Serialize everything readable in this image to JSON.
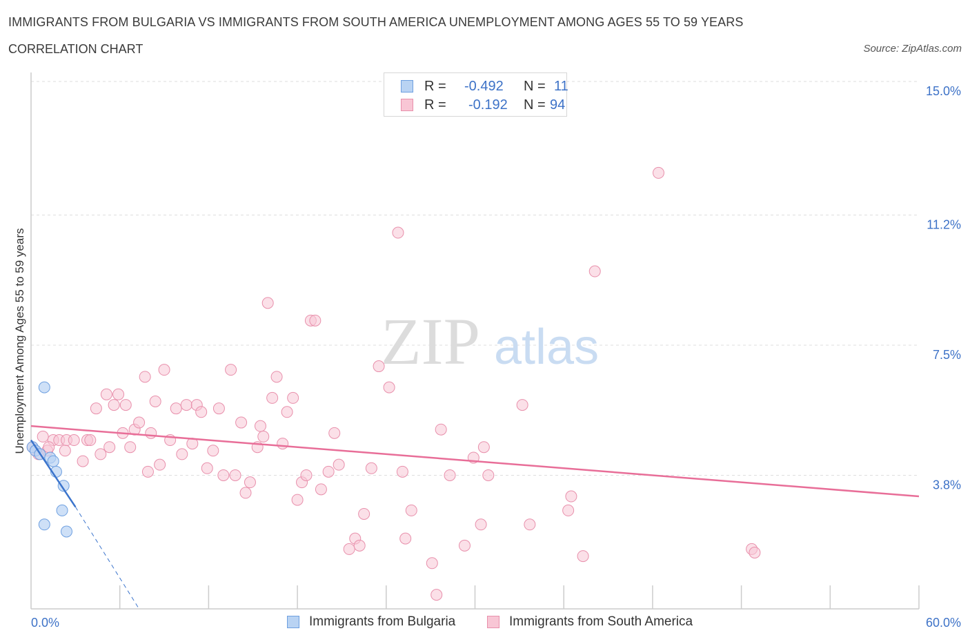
{
  "header": {
    "title": "IMMIGRANTS FROM BULGARIA VS IMMIGRANTS FROM SOUTH AMERICA UNEMPLOYMENT AMONG AGES 55 TO 59 YEARS",
    "subtitle": "CORRELATION CHART",
    "source": "Source: ZipAtlas.com"
  },
  "legend_top": {
    "rows": [
      {
        "r_label": "R =",
        "r_value": "-0.492",
        "n_label": "N =",
        "n_value": "11"
      },
      {
        "r_label": "R =",
        "r_value": "-0.192",
        "n_label": "N =",
        "n_value": "94"
      }
    ]
  },
  "watermark": {
    "part1": "ZIP",
    "part2": "atlas"
  },
  "colors": {
    "bulgaria_fill": "#b9d3f3",
    "bulgaria_stroke": "#6d9fe0",
    "bulgaria_line": "#3b74cc",
    "south_america_fill": "#f8c6d5",
    "south_america_stroke": "#e88fab",
    "south_america_line": "#e86e98",
    "grid": "#dddddd",
    "tick_text": "#3d72c7"
  },
  "chart_data": {
    "type": "scatter",
    "title": "IMMIGRANTS FROM BULGARIA VS IMMIGRANTS FROM SOUTH AMERICA UNEMPLOYMENT AMONG AGES 55 TO 59 YEARS",
    "xlabel": "",
    "ylabel": "Unemployment Among Ages 55 to 59 years",
    "xlim": [
      0,
      60
    ],
    "ylim": [
      0,
      15
    ],
    "x_tick_labels": [
      "0.0%",
      "60.0%"
    ],
    "y_ticks": [
      3.8,
      7.5,
      11.2,
      15.0
    ],
    "y_tick_labels": [
      "3.8%",
      "7.5%",
      "11.2%",
      "15.0%"
    ],
    "grid": true,
    "legend_position": "bottom-center",
    "series": [
      {
        "name": "Immigrants from Bulgaria",
        "R": -0.492,
        "N": 11,
        "points": [
          [
            0.1,
            4.6
          ],
          [
            0.3,
            4.5
          ],
          [
            0.6,
            4.4
          ],
          [
            0.9,
            6.3
          ],
          [
            1.3,
            4.3
          ],
          [
            1.5,
            4.2
          ],
          [
            1.7,
            3.9
          ],
          [
            2.2,
            3.5
          ],
          [
            2.1,
            2.8
          ],
          [
            0.9,
            2.4
          ],
          [
            2.4,
            2.2
          ]
        ],
        "trend": {
          "x1": 0.0,
          "y1": 4.8,
          "x2": 3.0,
          "y2": 2.9,
          "dashed_to": [
            7.3,
            0.0
          ]
        }
      },
      {
        "name": "Immigrants from South America",
        "R": -0.192,
        "N": 94,
        "points": [
          [
            0.1,
            4.6
          ],
          [
            0.5,
            4.4
          ],
          [
            1.1,
            4.5
          ],
          [
            1.5,
            4.8
          ],
          [
            1.9,
            4.8
          ],
          [
            2.3,
            4.5
          ],
          [
            2.4,
            4.8
          ],
          [
            2.9,
            4.8
          ],
          [
            3.5,
            4.2
          ],
          [
            3.8,
            4.8
          ],
          [
            4.0,
            4.8
          ],
          [
            4.4,
            5.7
          ],
          [
            4.7,
            4.4
          ],
          [
            5.1,
            6.1
          ],
          [
            5.3,
            4.6
          ],
          [
            5.6,
            5.8
          ],
          [
            5.9,
            6.1
          ],
          [
            6.2,
            5.0
          ],
          [
            6.4,
            5.8
          ],
          [
            6.7,
            4.6
          ],
          [
            7.0,
            5.1
          ],
          [
            7.3,
            5.3
          ],
          [
            7.7,
            6.6
          ],
          [
            7.9,
            3.9
          ],
          [
            8.1,
            5.0
          ],
          [
            8.4,
            5.9
          ],
          [
            8.7,
            4.1
          ],
          [
            9.0,
            6.8
          ],
          [
            9.4,
            4.8
          ],
          [
            9.8,
            5.7
          ],
          [
            10.2,
            4.4
          ],
          [
            10.5,
            5.8
          ],
          [
            10.9,
            4.7
          ],
          [
            11.2,
            5.8
          ],
          [
            11.5,
            5.6
          ],
          [
            11.9,
            4.0
          ],
          [
            12.3,
            4.5
          ],
          [
            12.7,
            5.7
          ],
          [
            13.0,
            3.8
          ],
          [
            13.5,
            6.8
          ],
          [
            13.8,
            3.8
          ],
          [
            14.2,
            5.3
          ],
          [
            14.5,
            3.3
          ],
          [
            14.8,
            3.6
          ],
          [
            15.3,
            4.6
          ],
          [
            15.5,
            5.2
          ],
          [
            15.7,
            4.9
          ],
          [
            16.0,
            8.7
          ],
          [
            16.3,
            6.0
          ],
          [
            16.6,
            6.6
          ],
          [
            17.0,
            4.7
          ],
          [
            17.3,
            5.6
          ],
          [
            17.7,
            6.0
          ],
          [
            18.0,
            3.1
          ],
          [
            18.3,
            3.6
          ],
          [
            18.6,
            3.8
          ],
          [
            18.9,
            8.2
          ],
          [
            19.2,
            8.2
          ],
          [
            19.6,
            3.4
          ],
          [
            20.1,
            3.9
          ],
          [
            20.5,
            5.0
          ],
          [
            20.8,
            4.1
          ],
          [
            21.5,
            1.7
          ],
          [
            21.9,
            2.0
          ],
          [
            22.2,
            1.8
          ],
          [
            22.5,
            2.7
          ],
          [
            23.0,
            4.0
          ],
          [
            23.5,
            6.9
          ],
          [
            24.2,
            6.3
          ],
          [
            24.8,
            10.7
          ],
          [
            25.1,
            3.9
          ],
          [
            25.3,
            2.0
          ],
          [
            25.7,
            2.8
          ],
          [
            27.1,
            1.3
          ],
          [
            27.4,
            0.4
          ],
          [
            27.7,
            5.1
          ],
          [
            28.3,
            3.8
          ],
          [
            29.3,
            1.8
          ],
          [
            29.9,
            4.3
          ],
          [
            30.4,
            2.4
          ],
          [
            30.6,
            4.6
          ],
          [
            30.9,
            3.8
          ],
          [
            33.2,
            5.8
          ],
          [
            33.7,
            2.4
          ],
          [
            36.3,
            2.8
          ],
          [
            36.5,
            3.2
          ],
          [
            37.3,
            1.5
          ],
          [
            38.1,
            9.6
          ],
          [
            42.4,
            12.4
          ],
          [
            48.7,
            1.7
          ],
          [
            48.9,
            1.6
          ],
          [
            0.3,
            4.5
          ],
          [
            0.8,
            4.9
          ],
          [
            1.2,
            4.6
          ]
        ],
        "trend": {
          "x1": 0.0,
          "y1": 5.2,
          "x2": 60.0,
          "y2": 3.2
        }
      }
    ]
  },
  "bottom_legend": [
    {
      "label": "Immigrants from Bulgaria"
    },
    {
      "label": "Immigrants from South America"
    }
  ]
}
